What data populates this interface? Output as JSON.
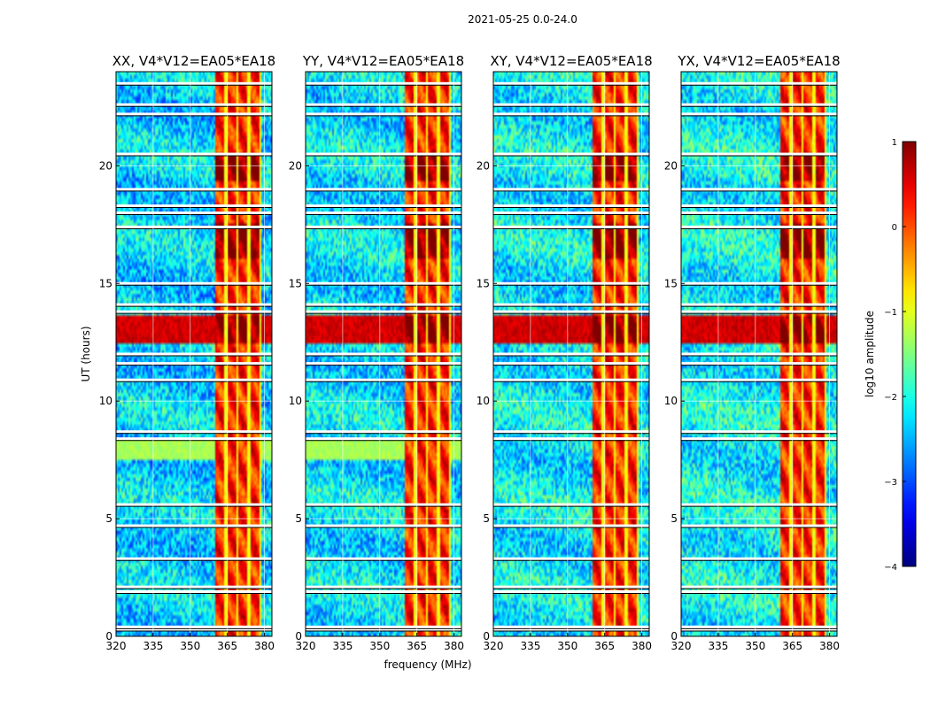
{
  "suptitle": "2021-05-25 0.0-24.0",
  "chart_data": {
    "type": "heatmap",
    "panels": [
      {
        "title": "XX, V4*V12=EA05*EA18",
        "polarization": "XX"
      },
      {
        "title": "YY, V4*V12=EA05*EA18",
        "polarization": "YY"
      },
      {
        "title": "XY, V4*V12=EA05*EA18",
        "polarization": "XY"
      },
      {
        "title": "YX, V4*V12=EA05*EA18",
        "polarization": "YX"
      }
    ],
    "xlabel": "frequency (MHz)",
    "ylabel": "UT (hours)",
    "xlim": [
      320,
      383
    ],
    "ylim": [
      0,
      24
    ],
    "x_ticks": [
      320,
      335,
      350,
      365,
      380
    ],
    "x_tick_labels": [
      "320",
      "335",
      "350",
      "365",
      "380"
    ],
    "y_ticks": [
      0,
      5,
      10,
      15,
      20
    ],
    "y_tick_labels": [
      "0",
      "5",
      "10",
      "15",
      "20"
    ],
    "grid": true,
    "colormap": "jet",
    "colorbar": {
      "label": "log10 amplitude",
      "min": -4,
      "max": 1,
      "ticks": [
        1,
        0,
        -1,
        -2,
        -3,
        -4
      ],
      "tick_labels": [
        "1",
        "0",
        "−1",
        "−2",
        "−3",
        "−4"
      ]
    },
    "features": {
      "rfi_band_mhz": [
        360,
        379
      ],
      "rfi_band_level": 0.2,
      "background_level": -2.3,
      "strong_rfi_ut_hours": [
        [
          12.4,
          13.6
        ],
        [
          16.1,
          17.6
        ],
        [
          19.3,
          20.6
        ]
      ],
      "flagged_ut_hours": [
        0.3,
        0.4,
        1.9,
        2.1,
        3.3,
        4.7,
        5.6,
        8.4,
        8.7,
        10.9,
        11.6,
        12.0,
        13.8,
        14.1,
        15.0,
        17.4,
        18.0,
        18.3,
        19.0,
        20.5,
        22.2,
        22.6,
        23.5
      ]
    }
  }
}
